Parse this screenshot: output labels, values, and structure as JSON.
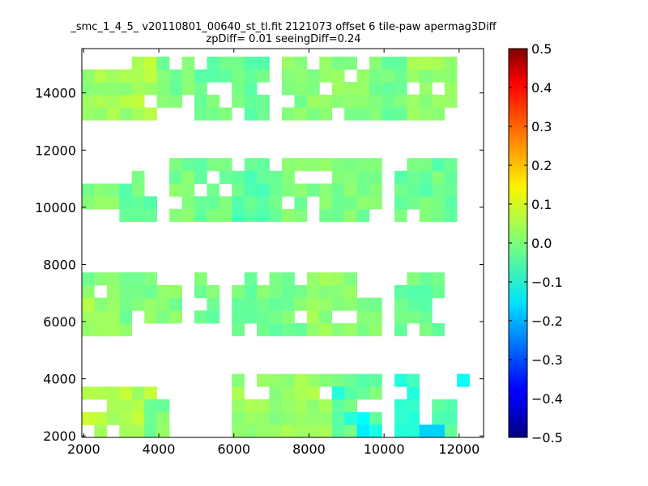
{
  "chart_data": {
    "type": "heatmap",
    "title": "_smc_1_4_5_ v20110801_00640_st_tl.fit 2121073 offset 6 tile-paw apermag3Diff",
    "subtitle": "zpDiff= 0.01 seeingDiff=0.24",
    "xlabel": "",
    "ylabel": "",
    "xlim": [
      1950,
      12650
    ],
    "ylim": [
      1950,
      15550
    ],
    "x_ticks": [
      "2000",
      "4000",
      "6000",
      "8000",
      "10000",
      "12000"
    ],
    "y_ticks": [
      "2000",
      "4000",
      "6000",
      "8000",
      "10000",
      "12000",
      "14000"
    ],
    "colorbar": {
      "vmin": -0.5,
      "vmax": 0.5,
      "colormap": "jet",
      "ticks": [
        "-0.5",
        "-0.4",
        "-0.3",
        "-0.2",
        "-0.1",
        "0.0",
        "0.1",
        "0.2",
        "0.3",
        "0.4",
        "0.5"
      ]
    },
    "cell_size": [
      333,
      444
    ],
    "cells_note_units": "x, y are lower-left corners of cells in data units; v is apermag3Diff",
    "cells": []
  }
}
